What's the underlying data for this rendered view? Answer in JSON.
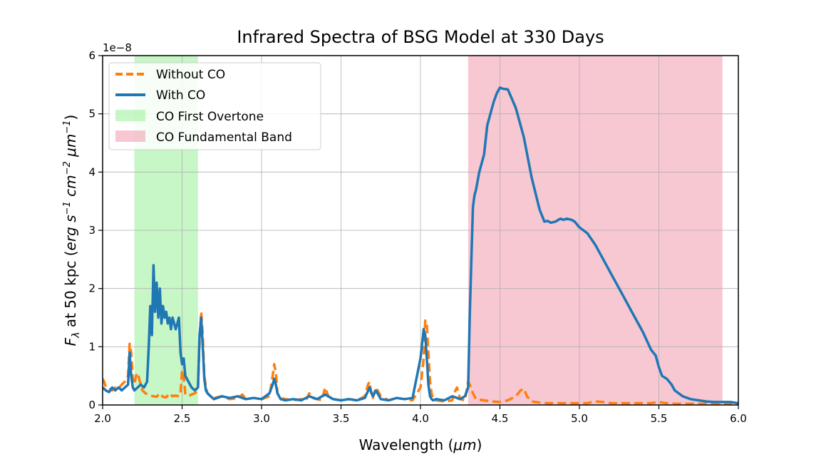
{
  "chart_data": {
    "type": "line",
    "title": "Infrared Spectra of BSG Model at 330 Days",
    "xlabel": "Wavelength (μm)",
    "ylabel": "F_λ at 50 kpc (erg s⁻¹ cm⁻² μm⁻¹)",
    "ylabel_parts": {
      "f": "F",
      "lambda": "λ",
      "mid": " at 50 kpc (",
      "erg": "erg s",
      "sup1": "−1",
      "cm": " cm",
      "sup2": "−2",
      "um": " μm",
      "sup3": "−1",
      "close": ")"
    },
    "xlabel_parts": {
      "main": "Wavelength (",
      "unit": "μm",
      "close": ")"
    },
    "y_offset_label": "1e−8",
    "xlim": [
      2.0,
      6.0
    ],
    "ylim": [
      0,
      6
    ],
    "x_ticks": [
      2.0,
      2.5,
      3.0,
      3.5,
      4.0,
      4.5,
      5.0,
      5.5,
      6.0
    ],
    "x_tick_labels": [
      "2.0",
      "2.5",
      "3.0",
      "3.5",
      "4.0",
      "4.5",
      "5.0",
      "5.5",
      "6.0"
    ],
    "y_ticks": [
      0,
      1,
      2,
      3,
      4,
      5,
      6
    ],
    "y_tick_labels": [
      "0",
      "1",
      "2",
      "3",
      "4",
      "5",
      "6"
    ],
    "grid": true,
    "legend_position": "top-left",
    "bands": [
      {
        "name": "CO First Overtone",
        "x_range": [
          2.2,
          2.6
        ],
        "color": "#90ee90"
      },
      {
        "name": "CO Fundamental Band",
        "x_range": [
          4.3,
          5.9
        ],
        "color": "#f08fa5"
      }
    ],
    "series": [
      {
        "name": "Without CO",
        "style": "dashed",
        "color": "#ff7f0e",
        "x": [
          2.0,
          2.01,
          2.02,
          2.04,
          2.06,
          2.08,
          2.1,
          2.12,
          2.14,
          2.16,
          2.17,
          2.18,
          2.19,
          2.2,
          2.21,
          2.22,
          2.23,
          2.24,
          2.25,
          2.27,
          2.3,
          2.32,
          2.34,
          2.36,
          2.38,
          2.4,
          2.42,
          2.44,
          2.46,
          2.48,
          2.49,
          2.5,
          2.51,
          2.52,
          2.54,
          2.56,
          2.58,
          2.6,
          2.61,
          2.62,
          2.63,
          2.64,
          2.65,
          2.66,
          2.68,
          2.7,
          2.75,
          2.8,
          2.85,
          2.88,
          2.9,
          2.95,
          3.0,
          3.05,
          3.07,
          3.08,
          3.09,
          3.1,
          3.12,
          3.15,
          3.2,
          3.25,
          3.28,
          3.3,
          3.32,
          3.35,
          3.38,
          3.4,
          3.42,
          3.45,
          3.5,
          3.55,
          3.6,
          3.65,
          3.67,
          3.68,
          3.69,
          3.7,
          3.72,
          3.75,
          3.8,
          3.85,
          3.9,
          3.95,
          4.0,
          4.02,
          4.03,
          4.04,
          4.05,
          4.06,
          4.07,
          4.08,
          4.1,
          4.15,
          4.2,
          4.22,
          4.23,
          4.25,
          4.28,
          4.3,
          4.31,
          4.33,
          4.35,
          4.4,
          4.45,
          4.5,
          4.55,
          4.6,
          4.63,
          4.65,
          4.67,
          4.7,
          4.75,
          4.8,
          4.9,
          5.0,
          5.05,
          5.1,
          5.15,
          5.2,
          5.3,
          5.4,
          5.45,
          5.5,
          5.55,
          5.6,
          5.7,
          5.8,
          5.9,
          6.0
        ],
        "y": [
          0.45,
          0.4,
          0.3,
          0.28,
          0.25,
          0.3,
          0.28,
          0.35,
          0.4,
          0.5,
          1.05,
          0.9,
          0.45,
          0.35,
          0.5,
          0.55,
          0.45,
          0.35,
          0.25,
          0.2,
          0.16,
          0.15,
          0.14,
          0.2,
          0.14,
          0.13,
          0.2,
          0.15,
          0.16,
          0.15,
          0.2,
          0.6,
          0.5,
          0.2,
          0.15,
          0.18,
          0.2,
          0.25,
          1.1,
          1.6,
          1.2,
          0.5,
          0.3,
          0.2,
          0.15,
          0.12,
          0.15,
          0.1,
          0.12,
          0.18,
          0.1,
          0.12,
          0.1,
          0.15,
          0.5,
          0.7,
          0.55,
          0.2,
          0.12,
          0.1,
          0.08,
          0.1,
          0.08,
          0.2,
          0.12,
          0.1,
          0.08,
          0.3,
          0.15,
          0.1,
          0.08,
          0.1,
          0.08,
          0.15,
          0.35,
          0.4,
          0.2,
          0.12,
          0.3,
          0.15,
          0.08,
          0.12,
          0.1,
          0.08,
          0.3,
          0.8,
          1.45,
          1.4,
          0.9,
          0.4,
          0.2,
          0.1,
          0.08,
          0.06,
          0.08,
          0.25,
          0.3,
          0.1,
          0.08,
          0.4,
          0.35,
          0.2,
          0.1,
          0.08,
          0.06,
          0.05,
          0.08,
          0.15,
          0.25,
          0.28,
          0.15,
          0.06,
          0.04,
          0.03,
          0.03,
          0.03,
          0.03,
          0.06,
          0.05,
          0.03,
          0.03,
          0.03,
          0.03,
          0.05,
          0.03,
          0.02,
          0.02,
          0.02,
          0.02,
          0.02
        ]
      },
      {
        "name": "With CO",
        "style": "solid",
        "color": "#1f77b4",
        "x": [
          2.0,
          2.02,
          2.04,
          2.06,
          2.08,
          2.1,
          2.12,
          2.14,
          2.16,
          2.17,
          2.18,
          2.19,
          2.2,
          2.22,
          2.24,
          2.26,
          2.28,
          2.29,
          2.3,
          2.31,
          2.32,
          2.33,
          2.34,
          2.35,
          2.36,
          2.37,
          2.38,
          2.39,
          2.4,
          2.41,
          2.42,
          2.43,
          2.44,
          2.45,
          2.46,
          2.47,
          2.48,
          2.49,
          2.5,
          2.51,
          2.52,
          2.54,
          2.56,
          2.58,
          2.6,
          2.61,
          2.62,
          2.63,
          2.64,
          2.65,
          2.66,
          2.68,
          2.7,
          2.75,
          2.8,
          2.85,
          2.88,
          2.9,
          2.95,
          3.0,
          3.05,
          3.07,
          3.08,
          3.09,
          3.1,
          3.12,
          3.15,
          3.2,
          3.25,
          3.3,
          3.35,
          3.4,
          3.45,
          3.5,
          3.55,
          3.6,
          3.65,
          3.68,
          3.7,
          3.72,
          3.75,
          3.8,
          3.85,
          3.9,
          3.95,
          4.0,
          4.02,
          4.03,
          4.04,
          4.05,
          4.06,
          4.07,
          4.08,
          4.1,
          4.15,
          4.2,
          4.25,
          4.28,
          4.3,
          4.31,
          4.32,
          4.33,
          4.34,
          4.35,
          4.37,
          4.4,
          4.42,
          4.44,
          4.46,
          4.48,
          4.5,
          4.52,
          4.55,
          4.6,
          4.65,
          4.7,
          4.75,
          4.78,
          4.8,
          4.82,
          4.85,
          4.88,
          4.9,
          4.92,
          4.95,
          4.97,
          5.0,
          5.05,
          5.1,
          5.15,
          5.2,
          5.25,
          5.3,
          5.35,
          5.4,
          5.45,
          5.48,
          5.5,
          5.52,
          5.55,
          5.58,
          5.6,
          5.65,
          5.7,
          5.75,
          5.8,
          5.85,
          5.9,
          5.95,
          6.0
        ],
        "y": [
          0.3,
          0.25,
          0.22,
          0.3,
          0.25,
          0.3,
          0.25,
          0.3,
          0.35,
          0.9,
          0.5,
          0.3,
          0.25,
          0.3,
          0.35,
          0.3,
          0.4,
          1.0,
          1.7,
          1.2,
          2.4,
          1.6,
          2.1,
          1.5,
          2.0,
          1.4,
          1.7,
          1.5,
          1.6,
          1.4,
          1.5,
          1.3,
          1.5,
          1.4,
          1.3,
          1.4,
          1.5,
          0.9,
          0.7,
          0.8,
          0.5,
          0.4,
          0.3,
          0.25,
          0.3,
          1.2,
          1.5,
          1.0,
          0.45,
          0.25,
          0.2,
          0.15,
          0.1,
          0.15,
          0.12,
          0.15,
          0.12,
          0.1,
          0.12,
          0.1,
          0.2,
          0.35,
          0.45,
          0.35,
          0.2,
          0.1,
          0.08,
          0.1,
          0.08,
          0.15,
          0.1,
          0.18,
          0.1,
          0.08,
          0.1,
          0.08,
          0.12,
          0.3,
          0.15,
          0.25,
          0.1,
          0.08,
          0.12,
          0.1,
          0.12,
          0.8,
          1.3,
          1.2,
          0.8,
          0.35,
          0.15,
          0.1,
          0.08,
          0.1,
          0.08,
          0.15,
          0.1,
          0.15,
          0.3,
          1.5,
          2.5,
          3.4,
          3.6,
          3.7,
          4.0,
          4.3,
          4.8,
          5.0,
          5.2,
          5.35,
          5.45,
          5.43,
          5.42,
          5.1,
          4.6,
          3.9,
          3.35,
          3.15,
          3.16,
          3.13,
          3.15,
          3.2,
          3.18,
          3.2,
          3.18,
          3.15,
          3.05,
          2.95,
          2.75,
          2.5,
          2.25,
          2.0,
          1.75,
          1.5,
          1.25,
          0.95,
          0.85,
          0.65,
          0.5,
          0.45,
          0.35,
          0.25,
          0.15,
          0.1,
          0.08,
          0.06,
          0.05,
          0.05,
          0.05,
          0.03
        ]
      }
    ]
  }
}
